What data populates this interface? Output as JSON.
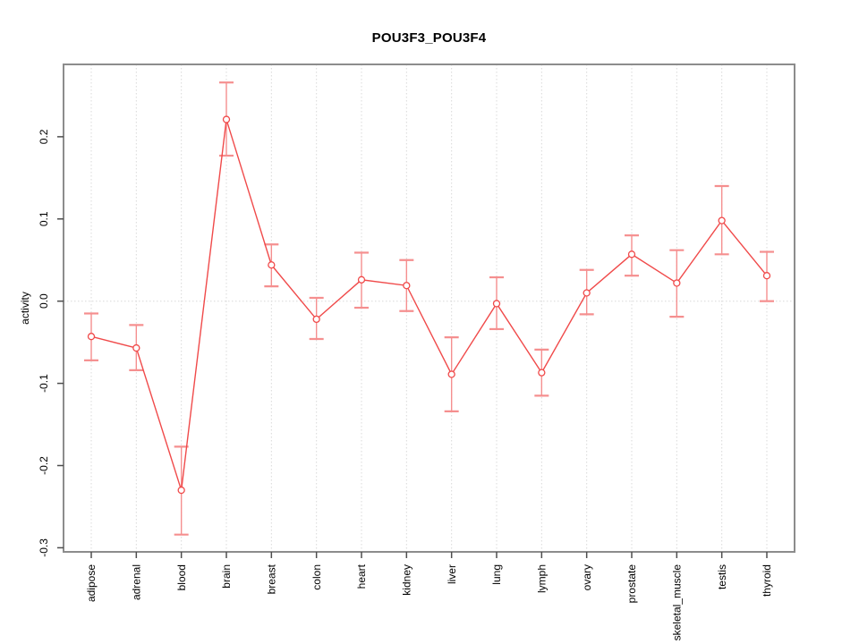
{
  "title": "POU3F3_POU3F4",
  "chart_data": {
    "type": "line",
    "title": "POU3F3_POU3F4",
    "xlabel": "",
    "ylabel": "activity",
    "legend": "none",
    "grid": {
      "vertical": "per-category-dotted",
      "horizontal_at_zero": true
    },
    "categories": [
      "adipose",
      "adrenal",
      "blood",
      "brain",
      "breast",
      "colon",
      "heart",
      "kidney",
      "liver",
      "lung",
      "lymph",
      "ovary",
      "prostate",
      "skeletal_muscle",
      "testis",
      "thyroid"
    ],
    "series": [
      {
        "name": "activity",
        "values": [
          -0.043,
          -0.057,
          -0.23,
          0.221,
          0.044,
          -0.022,
          0.026,
          0.019,
          -0.089,
          -0.003,
          -0.087,
          0.01,
          0.057,
          0.022,
          0.098,
          0.031
        ],
        "ci_upper": [
          -0.015,
          -0.029,
          -0.177,
          0.266,
          0.069,
          0.004,
          0.059,
          0.05,
          -0.044,
          0.029,
          -0.059,
          0.038,
          0.08,
          0.062,
          0.14,
          0.06
        ],
        "ci_lower": [
          -0.072,
          -0.084,
          -0.284,
          0.177,
          0.018,
          -0.046,
          -0.008,
          -0.012,
          -0.134,
          -0.034,
          -0.115,
          -0.016,
          0.031,
          -0.019,
          0.057,
          0.0
        ]
      }
    ],
    "yticks": [
      -0.3,
      -0.2,
      -0.1,
      0.0,
      0.1,
      0.2
    ],
    "ylim": [
      -0.305,
      0.288
    ],
    "colors": {
      "line": "#f04a4a",
      "point": "#f04a4a",
      "point_fill": "#ffffff",
      "error_bar": "#f58f8f",
      "grid": "#d9d9d9",
      "box": "#8c8c8c",
      "tick": "#4d4d4d",
      "text": "#000000",
      "background": "#ffffff"
    }
  }
}
